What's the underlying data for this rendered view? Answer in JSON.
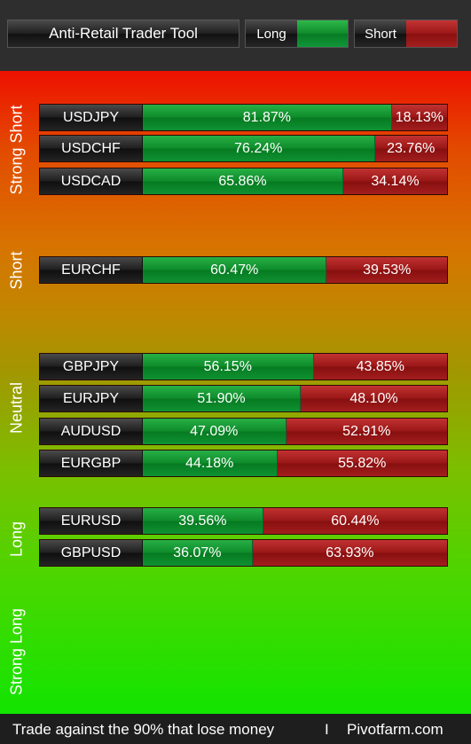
{
  "header": {
    "title": "Anti-Retail Trader Tool",
    "legend_long": "Long",
    "legend_short": "Short"
  },
  "sections": [
    {
      "label": "Strong Short"
    },
    {
      "label": "Short"
    },
    {
      "label": "Neutral"
    },
    {
      "label": "Long"
    },
    {
      "label": "Strong Long"
    }
  ],
  "rows": [
    {
      "pair": "USDJPY",
      "long": "81.87%",
      "short": "18.13%",
      "long_value": 81.87
    },
    {
      "pair": "USDCHF",
      "long": "76.24%",
      "short": "23.76%",
      "long_value": 76.24
    },
    {
      "pair": "USDCAD",
      "long": "65.86%",
      "short": "34.14%",
      "long_value": 65.86
    },
    {
      "pair": "EURCHF",
      "long": "60.47%",
      "short": "39.53%",
      "long_value": 60.47
    },
    {
      "pair": "GBPJPY",
      "long": "56.15%",
      "short": "43.85%",
      "long_value": 56.15
    },
    {
      "pair": "EURJPY",
      "long": "51.90%",
      "short": "48.10%",
      "long_value": 51.9
    },
    {
      "pair": "AUDUSD",
      "long": "47.09%",
      "short": "52.91%",
      "long_value": 47.09
    },
    {
      "pair": "EURGBP",
      "long": "44.18%",
      "short": "55.82%",
      "long_value": 44.18
    },
    {
      "pair": "EURUSD",
      "long": "39.56%",
      "short": "60.44%",
      "long_value": 39.56
    },
    {
      "pair": "GBPUSD",
      "long": "36.07%",
      "short": "63.93%",
      "long_value": 36.07
    }
  ],
  "footer": {
    "tagline": "Trade against the 90% that lose money",
    "separator": "I",
    "brand": "Pivotfarm.com"
  },
  "colors": {
    "long_bar": "#0e8a2a",
    "short_bar": "#991616"
  }
}
